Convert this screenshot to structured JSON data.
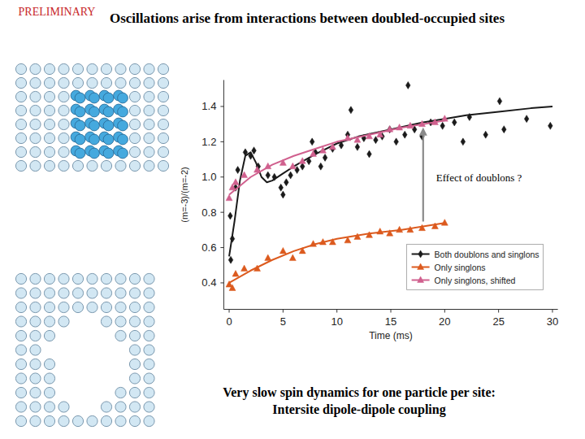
{
  "slide": {
    "title": "Oscillations arise from interactions between doubled-occupied sites",
    "caption": "Very slow spin dynamics for one particle per site: Intersite dipole-dipole coupling",
    "stamp": "PRELIMINARY"
  },
  "chart_data": {
    "type": "scatter",
    "x_label": "Time (ms)",
    "y_label": "(m=-3)/(m=-2)",
    "xlim": [
      -0.5,
      30.5
    ],
    "xticks": [
      0,
      5,
      10,
      15,
      20,
      25,
      30
    ],
    "ylim": [
      0.25,
      1.55
    ],
    "yticks": [
      0.4,
      0.6,
      0.8,
      {
        "value": 1,
        "label": "1.0"
      },
      1.2,
      1.4
    ],
    "grid": false,
    "legend": "lower right",
    "annotations": [
      {
        "text": "Effect of doublons ?"
      }
    ],
    "series": [
      {
        "name": "Both doublons and singlons",
        "color": "#1a1a1a",
        "marker": "diamond",
        "line_style": "solid",
        "x": [
          0.1,
          0.15,
          0.3,
          0.6,
          0.8,
          1.5,
          2.0,
          2.3,
          2.7,
          3.6,
          4.2,
          4.8,
          5.0,
          5.3,
          5.7,
          6.3,
          6.8,
          7.4,
          7.7,
          8.0,
          8.5,
          8.9,
          9.6,
          10.4,
          11.0,
          11.3,
          11.9,
          12.5,
          13.0,
          13.6,
          14.2,
          14.9,
          15.5,
          16.3,
          16.6,
          17.2,
          17.9,
          18.7,
          19.8,
          20.9,
          21.7,
          22.3,
          23.8,
          25.1,
          25.5,
          27.6,
          29.8
        ],
        "values": [
          0.78,
          0.53,
          0.65,
          0.94,
          1.04,
          1.14,
          1.12,
          1.15,
          1.06,
          1.01,
          1.0,
          0.94,
          0.9,
          0.97,
          1.01,
          1.04,
          1.06,
          1.09,
          1.2,
          1.14,
          1.06,
          1.11,
          1.16,
          1.18,
          1.24,
          1.38,
          1.17,
          1.22,
          1.13,
          1.21,
          1.23,
          1.27,
          1.2,
          1.24,
          1.52,
          1.27,
          1.23,
          1.31,
          1.29,
          1.31,
          1.2,
          1.34,
          1.24,
          1.43,
          1.27,
          1.33,
          1.29
        ],
        "fit": {
          "x": [
            0,
            0.5,
            1,
            1.5,
            2,
            2.5,
            3,
            3.5,
            4,
            5,
            6,
            8,
            10,
            12,
            15,
            18,
            20,
            22,
            25,
            28,
            30
          ],
          "values": [
            0.55,
            0.75,
            0.98,
            1.12,
            1.14,
            1.08,
            1.0,
            0.97,
            0.98,
            1.02,
            1.06,
            1.13,
            1.19,
            1.23,
            1.27,
            1.31,
            1.33,
            1.35,
            1.37,
            1.39,
            1.4
          ]
        }
      },
      {
        "name": "Only singlons",
        "color": "#dc5a1e",
        "marker": "triangle",
        "line_style": "solid",
        "x": [
          0,
          0.3,
          0.6,
          1.4,
          2.6,
          3.6,
          5.0,
          5.9,
          6.8,
          7.8,
          8.7,
          9.6,
          11.0,
          11.9,
          13.0,
          14.0,
          14.9,
          15.8,
          16.8,
          17.9,
          19.1,
          20.0
        ],
        "values": [
          0.39,
          0.37,
          0.45,
          0.48,
          0.48,
          0.54,
          0.58,
          0.54,
          0.58,
          0.62,
          0.63,
          0.63,
          0.64,
          0.66,
          0.67,
          0.69,
          0.68,
          0.7,
          0.7,
          0.71,
          0.72,
          0.74
        ],
        "fit": {
          "x": [
            0,
            2,
            4,
            6,
            8,
            10,
            13,
            16,
            18,
            20
          ],
          "values": [
            0.4,
            0.47,
            0.53,
            0.58,
            0.62,
            0.65,
            0.68,
            0.7,
            0.72,
            0.74
          ]
        }
      },
      {
        "name": "Only singlons, shifted",
        "color": "#d0608e",
        "marker": "triangle",
        "line_style": "solid",
        "x": [
          0,
          0.3,
          0.6,
          1.4,
          2.6,
          3.6,
          5.0,
          5.9,
          6.8,
          7.8,
          8.7,
          9.6,
          11.0,
          11.9,
          13.0,
          14.0,
          14.9,
          15.8,
          16.8,
          17.9,
          19.1,
          20.0
        ],
        "values": [
          0.88,
          0.94,
          0.97,
          1.01,
          1.04,
          1.06,
          1.08,
          1.06,
          1.09,
          1.13,
          1.15,
          1.17,
          1.22,
          1.21,
          1.23,
          1.24,
          1.27,
          1.28,
          1.29,
          1.3,
          1.31,
          1.33
        ],
        "fit": {
          "x": [
            0,
            2,
            4,
            6,
            8,
            10,
            13,
            16,
            18,
            20
          ],
          "values": [
            0.9,
            1.0,
            1.07,
            1.12,
            1.16,
            1.2,
            1.24,
            1.28,
            1.3,
            1.32
          ]
        }
      }
    ]
  }
}
